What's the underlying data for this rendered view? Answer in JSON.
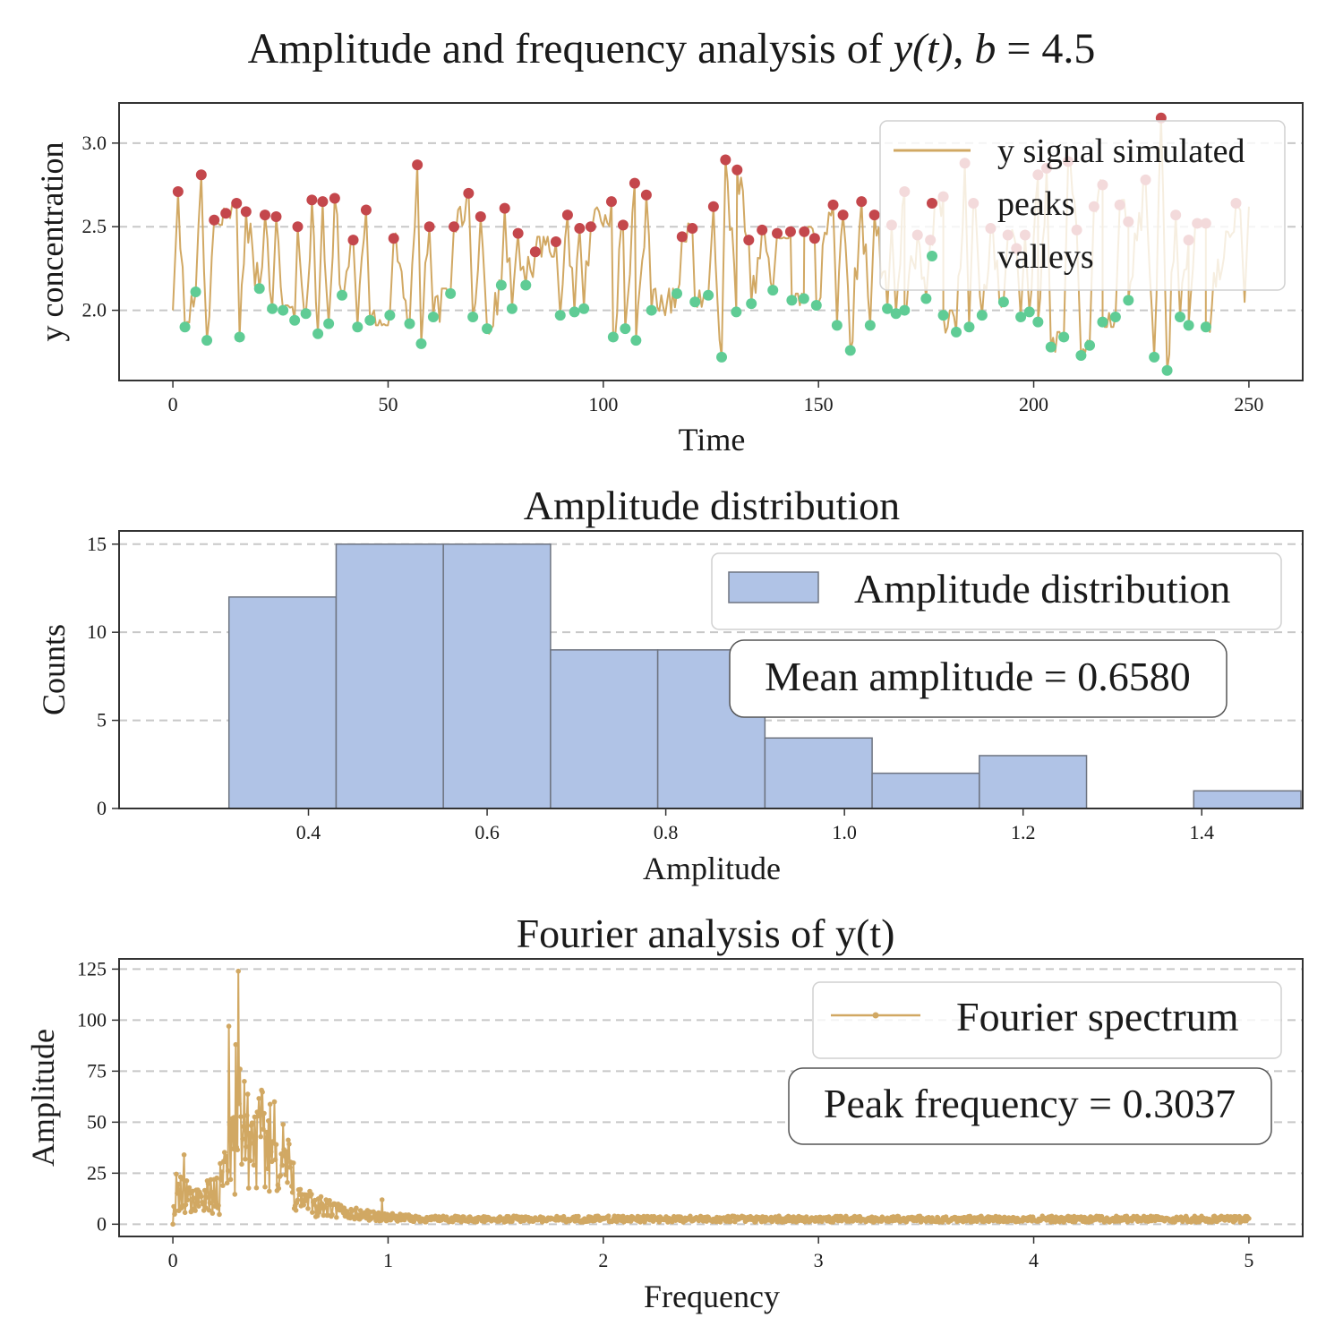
{
  "figure": {
    "suptitle_main": "Amplitude and frequency analysis of ",
    "suptitle_yt": "y(t)",
    "suptitle_sep": ", ",
    "suptitle_b": "b",
    "suptitle_eq": " = 4.5"
  },
  "colors": {
    "signal": "#d1a863",
    "peaks": "#c4474c",
    "valleys": "#5fcc95",
    "hist_fill": "#b0c3e6",
    "hist_edge": "#6e7480",
    "grid": "#c8c8c8",
    "axis": "#333333"
  },
  "chart_data": [
    {
      "type": "line",
      "title": "",
      "xlabel": "Time",
      "ylabel": "y concentration",
      "xlim": [
        -12.5,
        262.5
      ],
      "ylim": [
        1.58,
        3.24
      ],
      "xticks": [
        0,
        50,
        100,
        150,
        200,
        250
      ],
      "yticks": [
        2.0,
        2.5,
        3.0
      ],
      "ytick_labels": [
        "2.0",
        "2.5",
        "3.0"
      ],
      "grid": "y-dashed",
      "legend_position": "top-right",
      "legend": [
        "y signal simulated",
        "peaks",
        "valleys"
      ],
      "series": [
        {
          "name": "y signal simulated",
          "kind": "line",
          "t_range": [
            0,
            250
          ],
          "mean": 2.3,
          "baseline_start": 2.0,
          "note_color_key": "signal"
        },
        {
          "name": "peaks",
          "kind": "scatter",
          "x": [
            1.2,
            6.6,
            9.6,
            12.3,
            14.8,
            17,
            21.4,
            24,
            29,
            32.3,
            34.8,
            37.6,
            41.9,
            44.9,
            51.3,
            56.8,
            59.6,
            65.3,
            68.7,
            71.5,
            77.1,
            80.2,
            84.2,
            89,
            91.7,
            94.5,
            97.1,
            101.9,
            104.6,
            107.3,
            110,
            118.3,
            120.7,
            125.6,
            128.4,
            131.1,
            133.8,
            136.9,
            140.4,
            143.5,
            146.7,
            149.1,
            153.4,
            155.7,
            160,
            163,
            167,
            170,
            173,
            176,
            179,
            184,
            186,
            190,
            194,
            196,
            198,
            201,
            203,
            208,
            210,
            214,
            216,
            220,
            222,
            226,
            229.6,
            233,
            236,
            238,
            240,
            247
          ],
          "y": [
            2.71,
            2.81,
            2.54,
            2.58,
            2.64,
            2.59,
            2.57,
            2.56,
            2.5,
            2.66,
            2.65,
            2.67,
            2.42,
            2.6,
            2.43,
            2.87,
            2.5,
            2.5,
            2.7,
            2.56,
            2.61,
            2.46,
            2.35,
            2.41,
            2.57,
            2.49,
            2.5,
            2.65,
            2.51,
            2.76,
            2.69,
            2.44,
            2.49,
            2.62,
            2.9,
            2.84,
            2.42,
            2.48,
            2.46,
            2.47,
            2.47,
            2.43,
            2.63,
            2.57,
            2.65,
            2.57,
            2.51,
            2.71,
            2.45,
            2.42,
            2.68,
            2.88,
            2.64,
            2.49,
            2.45,
            2.37,
            2.45,
            2.81,
            2.85,
            2.89,
            2.48,
            2.62,
            2.75,
            2.63,
            2.53,
            2.78,
            3.15,
            2.57,
            2.42,
            2.52,
            2.52,
            2.64
          ]
        },
        {
          "name": "valleys",
          "kind": "scatter",
          "x": [
            2.8,
            5.3,
            7.9,
            15.5,
            20.1,
            23.1,
            25.6,
            28.3,
            30.9,
            33.7,
            36.2,
            39.3,
            42.9,
            45.8,
            50.4,
            55,
            57.7,
            60.5,
            64.5,
            69.7,
            73,
            76.3,
            78.8,
            82,
            90,
            93.3,
            95.5,
            102.3,
            105.1,
            107.6,
            111.2,
            117.1,
            121.3,
            124.4,
            127.5,
            130.9,
            134.4,
            139.4,
            143.8,
            146.6,
            149.5,
            154.3,
            157.4,
            162,
            166,
            168,
            170,
            175,
            179,
            182,
            185,
            188,
            193,
            197,
            199,
            201,
            204,
            207,
            211,
            213,
            216,
            219,
            222,
            228,
            231,
            234,
            236,
            240
          ],
          "y": [
            1.9,
            2.11,
            1.82,
            1.84,
            2.13,
            2.01,
            2.0,
            1.94,
            1.98,
            1.86,
            1.92,
            2.09,
            1.9,
            1.94,
            1.97,
            1.92,
            1.8,
            1.96,
            2.1,
            1.96,
            1.89,
            2.15,
            2.01,
            2.15,
            1.97,
            1.99,
            2.01,
            1.84,
            1.89,
            1.82,
            2.0,
            2.1,
            2.05,
            2.09,
            1.72,
            1.99,
            2.04,
            2.12,
            2.06,
            2.07,
            2.03,
            1.91,
            1.76,
            1.91,
            2.01,
            1.98,
            2.0,
            2.07,
            1.97,
            1.87,
            1.9,
            1.97,
            2.05,
            1.96,
            1.99,
            1.93,
            1.78,
            1.84,
            1.73,
            1.79,
            1.93,
            1.96,
            2.06,
            1.72,
            1.64,
            1.96,
            1.91,
            1.9
          ]
        }
      ]
    },
    {
      "type": "bar",
      "title": "Amplitude distribution",
      "xlabel": "Amplitude",
      "ylabel": "Counts",
      "xlim": [
        0.188,
        1.513
      ],
      "ylim": [
        0,
        15.75
      ],
      "xticks": [
        0.4,
        0.6,
        0.8,
        1.0,
        1.2,
        1.4
      ],
      "xtick_labels": [
        "0.4",
        "0.6",
        "0.8",
        "1.0",
        "1.2",
        "1.4"
      ],
      "yticks": [
        0,
        5,
        10,
        15
      ],
      "grid": "y-dashed",
      "legend_position": "top-right",
      "legend": [
        "Amplitude distribution"
      ],
      "bin_edges": [
        0.311,
        0.431,
        0.551,
        0.671,
        0.791,
        0.911,
        1.031,
        1.151,
        1.271,
        1.391,
        1.511
      ],
      "counts": [
        12,
        15,
        15,
        9,
        9,
        4,
        2,
        3,
        0,
        1
      ],
      "annotation": "Mean amplitude = 0.6580"
    },
    {
      "type": "line",
      "title": "Fourier analysis of y(t)",
      "xlabel": "Frequency",
      "ylabel": "Amplitude",
      "xlim": [
        -0.25,
        5.25
      ],
      "ylim": [
        -6,
        130
      ],
      "xticks": [
        0,
        1,
        2,
        3,
        4,
        5
      ],
      "yticks": [
        0,
        25,
        50,
        75,
        100,
        125
      ],
      "grid": "y-dashed",
      "legend_position": "top-right",
      "legend": [
        "Fourier spectrum"
      ],
      "series": [
        {
          "name": "Fourier spectrum",
          "kind": "line-markers",
          "f_range": [
            0,
            5
          ],
          "peak_frequency": 0.3037,
          "peak_amplitude": 124,
          "secondary_peak": [
            0.26,
            97
          ]
        }
      ],
      "annotation": "Peak frequency = 0.3037"
    }
  ]
}
